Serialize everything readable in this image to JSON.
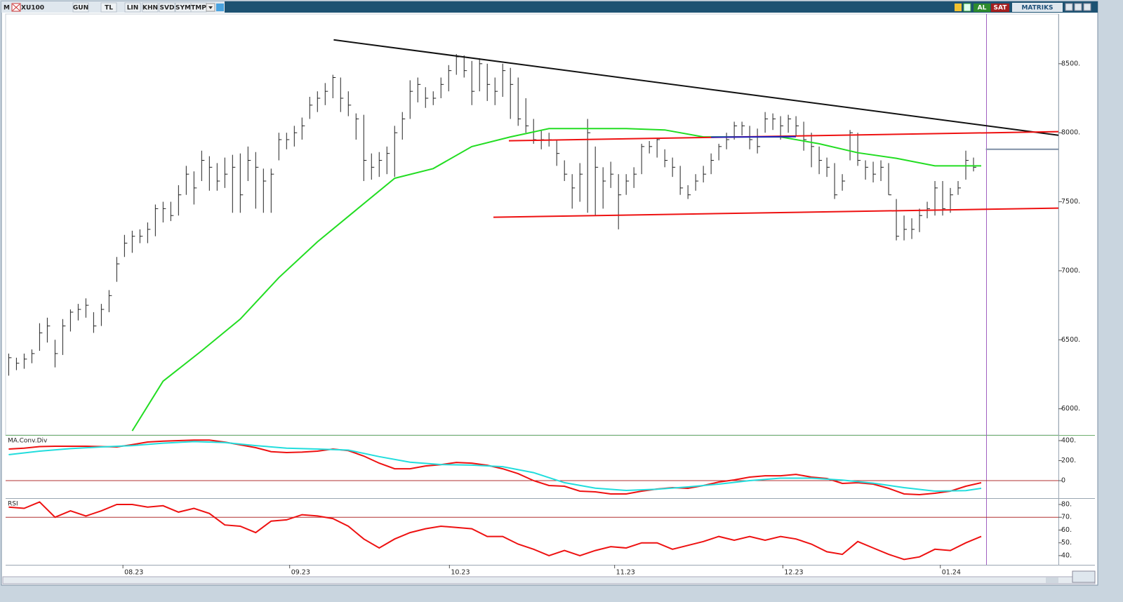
{
  "toolbar": {
    "menu": "M",
    "symbol": "XU100",
    "buttons": [
      "GUN",
      "TL",
      "LIN",
      "KHN",
      "SVD",
      "SYM",
      "TMP"
    ],
    "buy": "AL",
    "sell": "SAT",
    "brand": "MATRIKS"
  },
  "chart_data": [
    {
      "type": "ohlc",
      "x": [
        0,
        1,
        2,
        3,
        4,
        5,
        6,
        7,
        8,
        9,
        10,
        11,
        12,
        13,
        14,
        15,
        16,
        17,
        18,
        19,
        20,
        21,
        22,
        23,
        24,
        25,
        26,
        27,
        28,
        29,
        30,
        31,
        32,
        33,
        34,
        35,
        36,
        37,
        38,
        39,
        40,
        41,
        42,
        43,
        44,
        45,
        46,
        47,
        48,
        49,
        50,
        51,
        52,
        53,
        54,
        55,
        56,
        57,
        58,
        59,
        60,
        61,
        62,
        63,
        64,
        65,
        66,
        67,
        68,
        69,
        70,
        71,
        72,
        73,
        74,
        75,
        76,
        77,
        78,
        79,
        80,
        81,
        82,
        83,
        84,
        85,
        86,
        87,
        88,
        89,
        90,
        91,
        92,
        93,
        94,
        95,
        96,
        97,
        98,
        99,
        100,
        101,
        102,
        103,
        104,
        105,
        106,
        107,
        108,
        109,
        110,
        111,
        112,
        113,
        114,
        115,
        116,
        117,
        118,
        119,
        120,
        121,
        122,
        123,
        124,
        125
      ],
      "high": [
        6400,
        6370,
        6400,
        6430,
        6620,
        6660,
        6500,
        6650,
        6720,
        6760,
        6800,
        6700,
        6760,
        6860,
        7100,
        7260,
        7290,
        7300,
        7350,
        7480,
        7500,
        7500,
        7620,
        7760,
        7720,
        7870,
        7830,
        7780,
        7820,
        7840,
        7850,
        7900,
        7860,
        7740,
        7740,
        8000,
        8000,
        8050,
        8110,
        8260,
        8300,
        8360,
        8420,
        8400,
        8300,
        8140,
        8130,
        7850,
        7860,
        7900,
        8050,
        8150,
        8380,
        8400,
        8330,
        8300,
        8400,
        8490,
        8570,
        8560,
        8520,
        8540,
        8500,
        8400,
        8500,
        8470,
        8400,
        8250,
        8100,
        8020,
        8000,
        7950,
        7800,
        7700,
        7780,
        8100,
        7900,
        7750,
        7790,
        7700,
        7700,
        7750,
        7920,
        7940,
        7960,
        7880,
        7820,
        7760,
        7620,
        7700,
        7760,
        7850,
        7920,
        8000,
        8080,
        8080,
        8050,
        8030,
        8150,
        8140,
        8120,
        8130,
        8120,
        8080,
        8000,
        7900,
        7820,
        7780,
        7700,
        8020,
        8000,
        7800,
        7790,
        7800,
        7780,
        7520,
        7400,
        7380,
        7450,
        7500,
        7650,
        7650,
        7600,
        7650,
        7870,
        7820
      ],
      "low": [
        6240,
        6280,
        6290,
        6330,
        6420,
        6480,
        6300,
        6390,
        6560,
        6640,
        6660,
        6550,
        6600,
        6700,
        6920,
        7100,
        7130,
        7200,
        7200,
        7250,
        7350,
        7360,
        7400,
        7550,
        7480,
        7650,
        7580,
        7580,
        7600,
        7420,
        7420,
        7650,
        7450,
        7420,
        7420,
        7800,
        7880,
        7900,
        7950,
        8100,
        8150,
        8200,
        8250,
        8150,
        8120,
        7950,
        7650,
        7660,
        7680,
        7700,
        7680,
        7950,
        8100,
        8220,
        8180,
        8200,
        8250,
        8300,
        8420,
        8400,
        8200,
        8300,
        8230,
        8200,
        8260,
        8100,
        8050,
        8000,
        7920,
        7880,
        7900,
        7760,
        7650,
        7450,
        7500,
        7420,
        7400,
        7450,
        7600,
        7300,
        7550,
        7600,
        7700,
        7850,
        7820,
        7750,
        7680,
        7550,
        7520,
        7580,
        7640,
        7700,
        7800,
        7880,
        7950,
        7980,
        7880,
        7850,
        8000,
        8020,
        7950,
        8000,
        7980,
        7870,
        7750,
        7700,
        7680,
        7520,
        7580,
        7800,
        7760,
        7660,
        7640,
        7650,
        7550,
        7220,
        7220,
        7230,
        7280,
        7380,
        7400,
        7400,
        7420,
        7550,
        7660,
        7720
      ],
      "close": [
        6370,
        6330,
        6360,
        6400,
        6550,
        6600,
        6400,
        6600,
        6700,
        6720,
        6750,
        6600,
        6720,
        6820,
        7050,
        7200,
        7250,
        7250,
        7300,
        7450,
        7450,
        7400,
        7550,
        7700,
        7600,
        7800,
        7750,
        7650,
        7700,
        7750,
        7550,
        7800,
        7750,
        7650,
        7700,
        7950,
        7950,
        8000,
        8050,
        8200,
        8250,
        8300,
        8400,
        8250,
        8200,
        8100,
        7800,
        7750,
        7800,
        7850,
        8000,
        8100,
        8300,
        8350,
        8250,
        8250,
        8350,
        8450,
        8550,
        8450,
        8300,
        8500,
        8350,
        8300,
        8450,
        8350,
        8100,
        8050,
        7950,
        7950,
        7950,
        7850,
        7700,
        7600,
        7700,
        8000,
        7750,
        7650,
        7700,
        7550,
        7650,
        7700,
        7900,
        7900,
        7950,
        7800,
        7750,
        7600,
        7550,
        7650,
        7700,
        7800,
        7900,
        7950,
        8050,
        8050,
        7950,
        7900,
        8100,
        8100,
        8050,
        8100,
        8050,
        7950,
        7900,
        7800,
        7750,
        7550,
        7650,
        8000,
        7800,
        7750,
        7700,
        7750,
        7550,
        7250,
        7300,
        7300,
        7400,
        7450,
        7600,
        7450,
        7550,
        7600,
        7800,
        7750
      ],
      "color": "#222222",
      "series": [
        {
          "color": "#22dd22",
          "x": [
            16,
            20,
            25,
            30,
            35,
            40,
            45,
            50,
            55,
            60,
            65,
            70,
            75,
            80,
            85,
            90,
            95,
            100,
            105,
            110,
            115,
            120,
            126
          ],
          "values": [
            5840,
            6200,
            6420,
            6650,
            6950,
            7210,
            7440,
            7670,
            7740,
            7900,
            7970,
            8030,
            8030,
            8030,
            8020,
            7970,
            7970,
            7970,
            7920,
            7855,
            7815,
            7760,
            7760
          ]
        }
      ],
      "lines": [
        {
          "color": "#111111",
          "x": [
            42.1,
            136
          ],
          "values": [
            8673,
            7982
          ]
        },
        {
          "color": "#ee1111",
          "x": [
            64.8,
            136
          ],
          "values": [
            7942,
            8008
          ]
        },
        {
          "color": "#ee1111",
          "x": [
            62.8,
            136
          ],
          "values": [
            7388,
            7454
          ]
        },
        {
          "color": "#2020c0",
          "x": [
            91,
            102
          ],
          "values": [
            7968,
            7972
          ]
        },
        {
          "color": "#7f8fa6",
          "x": [
            126.6,
            136
          ],
          "values": [
            7880,
            7880
          ]
        }
      ],
      "xlim": [
        -0.4,
        136
      ],
      "ylim": [
        5810,
        8860
      ],
      "xticks": [
        {
          "value": 14.8,
          "label": "08.23"
        },
        {
          "value": 36.4,
          "label": "09.23"
        },
        {
          "value": 57.1,
          "label": "10.23"
        },
        {
          "value": 78.5,
          "label": "11.23"
        },
        {
          "value": 100.3,
          "label": "12.23"
        },
        {
          "value": 120.7,
          "label": "01.24"
        }
      ],
      "yticks": [
        {
          "value": 6000,
          "label": "6000."
        },
        {
          "value": 6500,
          "label": "6500."
        },
        {
          "value": 7000,
          "label": "7000."
        },
        {
          "value": 7500,
          "label": "7500."
        },
        {
          "value": 8000,
          "label": "8000."
        },
        {
          "value": 8500,
          "label": "8500."
        }
      ]
    },
    {
      "type": "line",
      "title": "MA.Conv.Div",
      "series": [
        {
          "color": "#ee1111",
          "x": [
            0,
            2,
            4,
            6,
            8,
            10,
            12,
            14,
            16,
            18,
            20,
            22,
            24,
            26,
            28,
            30,
            32,
            34,
            36,
            38,
            40,
            42,
            44,
            46,
            48,
            50,
            52,
            54,
            56,
            58,
            60,
            62,
            64,
            66,
            68,
            70,
            72,
            74,
            76,
            78,
            80,
            82,
            84,
            86,
            88,
            90,
            92,
            94,
            96,
            98,
            100,
            102,
            104,
            106,
            108,
            110,
            112,
            114,
            116,
            118,
            120,
            122,
            124,
            126
          ],
          "values": [
            316,
            325,
            340,
            344,
            344,
            344,
            340,
            337,
            360,
            386,
            395,
            400,
            405,
            405,
            385,
            358,
            330,
            290,
            281,
            285,
            295,
            316,
            300,
            246,
            175,
            119,
            119,
            147,
            160,
            182,
            175,
            154,
            119,
            70,
            0,
            -49,
            -56,
            -105,
            -112,
            -133,
            -133,
            -105,
            -84,
            -70,
            -77,
            -49,
            -14,
            7,
            35,
            49,
            49,
            63,
            35,
            21,
            -28,
            -21,
            -35,
            -77,
            -133,
            -140,
            -126,
            -105,
            -56,
            -21
          ]
        },
        {
          "color": "#22dddd",
          "x": [
            0,
            4,
            8,
            12,
            16,
            20,
            24,
            28,
            32,
            36,
            40,
            44,
            48,
            52,
            56,
            60,
            64,
            68,
            72,
            76,
            80,
            84,
            88,
            92,
            96,
            100,
            104,
            108,
            112,
            116,
            120,
            124,
            126
          ],
          "values": [
            260,
            295,
            320,
            337,
            350,
            375,
            390,
            380,
            350,
            325,
            316,
            305,
            240,
            185,
            161,
            155,
            140,
            80,
            -20,
            -75,
            -98,
            -85,
            -63,
            -35,
            0,
            25,
            25,
            5,
            -25,
            -70,
            -105,
            -100,
            -77
          ]
        }
      ],
      "reference_lines": [
        {
          "value": 0,
          "color": "#b03030"
        }
      ],
      "xlim": [
        -0.4,
        136
      ],
      "ylim": [
        -175,
        449
      ],
      "yticks": [
        0,
        {
          "value": 200,
          "label": "200."
        },
        {
          "value": 400,
          "label": "400."
        }
      ]
    },
    {
      "type": "line",
      "title": "RSI",
      "series": [
        {
          "color": "#ee1111",
          "x": [
            0,
            2,
            4,
            6,
            8,
            10,
            12,
            14,
            16,
            18,
            20,
            22,
            24,
            26,
            28,
            30,
            32,
            34,
            36,
            38,
            40,
            42,
            44,
            46,
            48,
            50,
            52,
            54,
            56,
            58,
            60,
            62,
            64,
            66,
            68,
            70,
            72,
            74,
            76,
            78,
            80,
            82,
            84,
            86,
            88,
            90,
            92,
            94,
            96,
            98,
            100,
            102,
            104,
            106,
            108,
            110,
            112,
            114,
            116,
            118,
            120,
            122,
            124,
            126
          ],
          "values": [
            78,
            77,
            82,
            70,
            75,
            71,
            75,
            80,
            80,
            78,
            79,
            74,
            77,
            73,
            64,
            63,
            58,
            67,
            68,
            72,
            71,
            69,
            63,
            53,
            46,
            53,
            58,
            61,
            63,
            62,
            61,
            55,
            55,
            49,
            45,
            40,
            44,
            40,
            44,
            47,
            46,
            50,
            50,
            45,
            48,
            51,
            55,
            52,
            55,
            52,
            55,
            53,
            49,
            43,
            41,
            51,
            46,
            41,
            37,
            39,
            45,
            44,
            50,
            55
          ]
        }
      ],
      "reference_lines": [
        {
          "value": 70,
          "color": "#b03030"
        }
      ],
      "xlim": [
        -0.4,
        136
      ],
      "ylim": [
        32.8,
        84.4
      ],
      "yticks": [
        {
          "value": 40,
          "label": "40."
        },
        {
          "value": 50,
          "label": "50."
        },
        {
          "value": 60,
          "label": "60."
        },
        {
          "value": 70,
          "label": "70."
        },
        {
          "value": 80,
          "label": "80."
        }
      ]
    }
  ]
}
